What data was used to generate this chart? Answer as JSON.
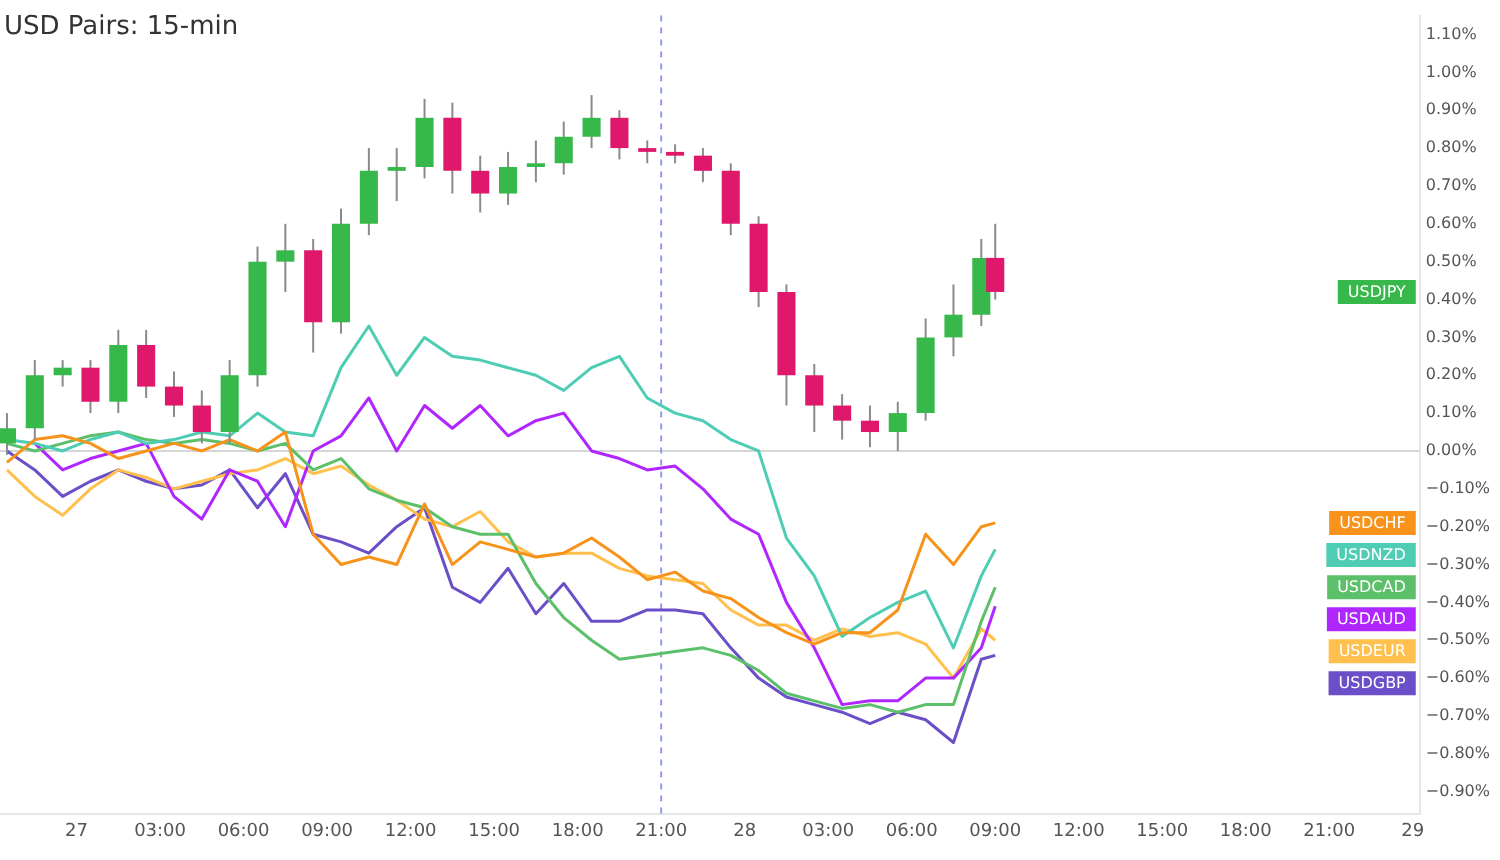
{
  "chart_data": {
    "type": "candlestick",
    "title": "USD Pairs: 15-min",
    "x": [
      "--01-26T21:30",
      "--01-26T22:30",
      "--01-26T23:30",
      "--01-27T00:30",
      "--01-27T01:30",
      "--01-27T02:30",
      "--01-27T03:30",
      "--01-27T04:30",
      "--01-27T05:30",
      "--01-27T06:30",
      "--01-27T07:30",
      "--01-27T08:30",
      "--01-27T09:30",
      "--01-27T10:30",
      "--01-27T11:30",
      "--01-27T12:30",
      "--01-27T13:30",
      "--01-27T14:30",
      "--01-27T15:30",
      "--01-27T16:30",
      "--01-27T17:30",
      "--01-27T18:30",
      "--01-27T19:30",
      "--01-27T20:30",
      "--01-27T21:30",
      "--01-27T22:30",
      "--01-27T23:30",
      "--01-28T00:30",
      "--01-28T01:30",
      "--01-28T02:30",
      "--01-28T03:30",
      "--01-28T04:30",
      "--01-28T05:30",
      "--01-28T06:30",
      "--01-28T07:30",
      "--01-28T08:30",
      "--01-28T09:00"
    ],
    "xlim": [
      "--01-26T21:15",
      "--01-29T00:15"
    ],
    "xticks": [
      {
        "value": "--01-27T00:00",
        "label": "27"
      },
      {
        "value": "--01-27T03:00",
        "label": "03:00"
      },
      {
        "value": "--01-27T06:00",
        "label": "06:00"
      },
      {
        "value": "--01-27T09:00",
        "label": "09:00"
      },
      {
        "value": "--01-27T12:00",
        "label": "12:00"
      },
      {
        "value": "--01-27T15:00",
        "label": "15:00"
      },
      {
        "value": "--01-27T18:00",
        "label": "18:00"
      },
      {
        "value": "--01-27T21:00",
        "label": "21:00"
      },
      {
        "value": "--01-28T00:00",
        "label": "28"
      },
      {
        "value": "--01-28T03:00",
        "label": "03:00"
      },
      {
        "value": "--01-28T06:00",
        "label": "06:00"
      },
      {
        "value": "--01-28T09:00",
        "label": "09:00"
      },
      {
        "value": "--01-28T12:00",
        "label": "12:00"
      },
      {
        "value": "--01-28T15:00",
        "label": "15:00"
      },
      {
        "value": "--01-28T18:00",
        "label": "18:00"
      },
      {
        "value": "--01-28T21:00",
        "label": "21:00"
      },
      {
        "value": "--01-29T00:00",
        "label": "29"
      }
    ],
    "ylim": [
      -0.96,
      1.15
    ],
    "yticks": [
      {
        "value": -0.9,
        "label": "−0.90%"
      },
      {
        "value": -0.8,
        "label": "−0.80%"
      },
      {
        "value": -0.7,
        "label": "−0.70%"
      },
      {
        "value": -0.6,
        "label": "−0.60%"
      },
      {
        "value": -0.5,
        "label": "−0.50%"
      },
      {
        "value": -0.4,
        "label": "−0.40%"
      },
      {
        "value": -0.3,
        "label": "−0.30%"
      },
      {
        "value": -0.2,
        "label": "−0.20%"
      },
      {
        "value": -0.1,
        "label": "−0.10%"
      },
      {
        "value": 0,
        "label": "0.00%"
      },
      {
        "value": 0.1,
        "label": "0.10%"
      },
      {
        "value": 0.2,
        "label": "0.20%"
      },
      {
        "value": 0.3,
        "label": "0.30%"
      },
      {
        "value": 0.4,
        "label": "0.40%"
      },
      {
        "value": 0.5,
        "label": "0.50%"
      },
      {
        "value": 0.6,
        "label": "0.60%"
      },
      {
        "value": 0.7,
        "label": "0.70%"
      },
      {
        "value": 0.8,
        "label": "0.80%"
      },
      {
        "value": 0.9,
        "label": "0.90%"
      },
      {
        "value": 1.0,
        "label": "1.00%"
      },
      {
        "value": 1.1,
        "label": "1.10%"
      }
    ],
    "grid": false,
    "legend": "right",
    "ref_lines": [
      {
        "axis": "y",
        "value": 0,
        "label": null,
        "color": "#d6d6d6",
        "line_style": "solid"
      },
      {
        "axis": "x",
        "value": "--01-27T21:00",
        "label": null,
        "color": "#8f9cf0",
        "line_style": "dashed"
      }
    ],
    "series": [
      {
        "name": "USDJPY",
        "color": "#36b84a",
        "ohlc": [
          [
            0.02,
            0.1,
            -0.01,
            0.06
          ],
          [
            0.06,
            0.24,
            0.03,
            0.2
          ],
          [
            0.2,
            0.24,
            0.17,
            0.22
          ],
          [
            0.22,
            0.24,
            0.1,
            0.13
          ],
          [
            0.13,
            0.32,
            0.1,
            0.28
          ],
          [
            0.28,
            0.32,
            0.14,
            0.17
          ],
          [
            0.17,
            0.21,
            0.09,
            0.12
          ],
          [
            0.12,
            0.16,
            0.02,
            0.05
          ],
          [
            0.05,
            0.24,
            0.02,
            0.2
          ],
          [
            0.2,
            0.54,
            0.17,
            0.5
          ],
          [
            0.5,
            0.6,
            0.42,
            0.53
          ],
          [
            0.53,
            0.56,
            0.26,
            0.34
          ],
          [
            0.34,
            0.64,
            0.31,
            0.6
          ],
          [
            0.6,
            0.8,
            0.57,
            0.74
          ],
          [
            0.74,
            0.8,
            0.66,
            0.75
          ],
          [
            0.75,
            0.93,
            0.72,
            0.88
          ],
          [
            0.88,
            0.92,
            0.68,
            0.74
          ],
          [
            0.74,
            0.78,
            0.63,
            0.68
          ],
          [
            0.68,
            0.79,
            0.65,
            0.75
          ],
          [
            0.75,
            0.82,
            0.71,
            0.76
          ],
          [
            0.76,
            0.87,
            0.73,
            0.83
          ],
          [
            0.83,
            0.94,
            0.8,
            0.88
          ],
          [
            0.88,
            0.9,
            0.77,
            0.8
          ],
          [
            0.8,
            0.82,
            0.76,
            0.79
          ],
          [
            0.79,
            0.81,
            0.76,
            0.78
          ],
          [
            0.78,
            0.8,
            0.71,
            0.74
          ],
          [
            0.74,
            0.76,
            0.57,
            0.6
          ],
          [
            0.6,
            0.62,
            0.38,
            0.42
          ],
          [
            0.42,
            0.44,
            0.12,
            0.2
          ],
          [
            0.2,
            0.23,
            0.05,
            0.12
          ],
          [
            0.12,
            0.15,
            0.03,
            0.08
          ],
          [
            0.08,
            0.12,
            0.01,
            0.05
          ],
          [
            0.05,
            0.13,
            0.0,
            0.1
          ],
          [
            0.1,
            0.35,
            0.08,
            0.3
          ],
          [
            0.3,
            0.44,
            0.25,
            0.36
          ],
          [
            0.36,
            0.56,
            0.33,
            0.51
          ],
          [
            0.51,
            0.6,
            0.4,
            0.42
          ]
        ],
        "colors": [
          "#36b84a",
          "#36b84a",
          "#36b84a",
          "#e0186c",
          "#36b84a",
          "#e0186c",
          "#e0186c",
          "#e0186c",
          "#36b84a",
          "#36b84a",
          "#36b84a",
          "#e0186c",
          "#36b84a",
          "#36b84a",
          "#36b84a",
          "#36b84a",
          "#e0186c",
          "#e0186c",
          "#36b84a",
          "#36b84a",
          "#36b84a",
          "#36b84a",
          "#e0186c",
          "#e0186c",
          "#e0186c",
          "#e0186c",
          "#e0186c",
          "#e0186c",
          "#e0186c",
          "#e0186c",
          "#e0186c",
          "#e0186c",
          "#36b84a",
          "#36b84a",
          "#36b84a",
          "#36b84a",
          "#e0186c"
        ]
      },
      {
        "name": "USDCHF",
        "type": "line",
        "color": "#f7931a",
        "values": [
          -0.03,
          0.03,
          0.04,
          0.02,
          -0.02,
          0.0,
          0.02,
          0.0,
          0.03,
          0.0,
          0.05,
          -0.22,
          -0.3,
          -0.28,
          -0.3,
          -0.14,
          -0.3,
          -0.24,
          -0.26,
          -0.28,
          -0.27,
          -0.23,
          -0.28,
          -0.34,
          -0.32,
          -0.37,
          -0.39,
          -0.44,
          -0.48,
          -0.51,
          -0.48,
          -0.48,
          -0.42,
          -0.22,
          -0.3,
          -0.2,
          -0.19
        ]
      },
      {
        "name": "USDNZD",
        "type": "line",
        "color": "#4ecdb4",
        "values": [
          0.03,
          0.02,
          0.0,
          0.03,
          0.05,
          0.02,
          0.03,
          0.05,
          0.04,
          0.1,
          0.05,
          0.04,
          0.22,
          0.33,
          0.2,
          0.3,
          0.25,
          0.24,
          0.22,
          0.2,
          0.16,
          0.22,
          0.25,
          0.14,
          0.1,
          0.08,
          0.03,
          0.0,
          -0.23,
          -0.33,
          -0.49,
          -0.44,
          -0.4,
          -0.37,
          -0.52,
          -0.33,
          -0.26
        ]
      },
      {
        "name": "USDCAD",
        "type": "line",
        "color": "#5cbf6a",
        "values": [
          0.02,
          0.0,
          0.02,
          0.04,
          0.05,
          0.03,
          0.02,
          0.03,
          0.02,
          0.0,
          0.02,
          -0.05,
          -0.02,
          -0.1,
          -0.13,
          -0.15,
          -0.2,
          -0.22,
          -0.22,
          -0.35,
          -0.44,
          -0.5,
          -0.55,
          -0.54,
          -0.53,
          -0.52,
          -0.54,
          -0.58,
          -0.64,
          -0.66,
          -0.68,
          -0.67,
          -0.69,
          -0.67,
          -0.67,
          -0.45,
          -0.36
        ]
      },
      {
        "name": "USDAUD",
        "type": "line",
        "color": "#b026ff",
        "values": [
          null,
          0.02,
          -0.05,
          -0.02,
          0.0,
          0.02,
          -0.12,
          -0.18,
          -0.05,
          -0.08,
          -0.2,
          0.0,
          0.04,
          0.14,
          0.0,
          0.12,
          0.06,
          0.12,
          0.04,
          0.08,
          0.1,
          0.0,
          -0.02,
          -0.05,
          -0.04,
          -0.1,
          -0.18,
          -0.22,
          -0.4,
          -0.52,
          -0.67,
          -0.66,
          -0.66,
          -0.6,
          -0.6,
          -0.52,
          -0.41
        ]
      },
      {
        "name": "USDEUR",
        "type": "line",
        "color": "#ffc04d",
        "values": [
          -0.05,
          -0.12,
          -0.17,
          -0.1,
          -0.05,
          -0.07,
          -0.1,
          -0.08,
          -0.06,
          -0.05,
          -0.02,
          -0.06,
          -0.04,
          -0.09,
          -0.13,
          -0.18,
          -0.2,
          -0.16,
          -0.24,
          -0.28,
          -0.27,
          -0.27,
          -0.31,
          -0.33,
          -0.34,
          -0.35,
          -0.42,
          -0.46,
          -0.46,
          -0.5,
          -0.47,
          -0.49,
          -0.48,
          -0.51,
          -0.6,
          -0.47,
          -0.5
        ]
      },
      {
        "name": "USDGBP",
        "type": "line",
        "color": "#6a4fc9",
        "values": [
          0.0,
          -0.05,
          -0.12,
          -0.08,
          -0.05,
          -0.08,
          -0.1,
          -0.09,
          -0.05,
          -0.15,
          -0.06,
          -0.22,
          -0.24,
          -0.27,
          -0.2,
          -0.15,
          -0.36,
          -0.4,
          -0.31,
          -0.43,
          -0.35,
          -0.45,
          -0.45,
          -0.42,
          -0.42,
          -0.43,
          -0.52,
          -0.6,
          -0.65,
          -0.67,
          -0.69,
          -0.72,
          -0.69,
          -0.71,
          -0.77,
          -0.55,
          -0.54
        ]
      }
    ]
  }
}
